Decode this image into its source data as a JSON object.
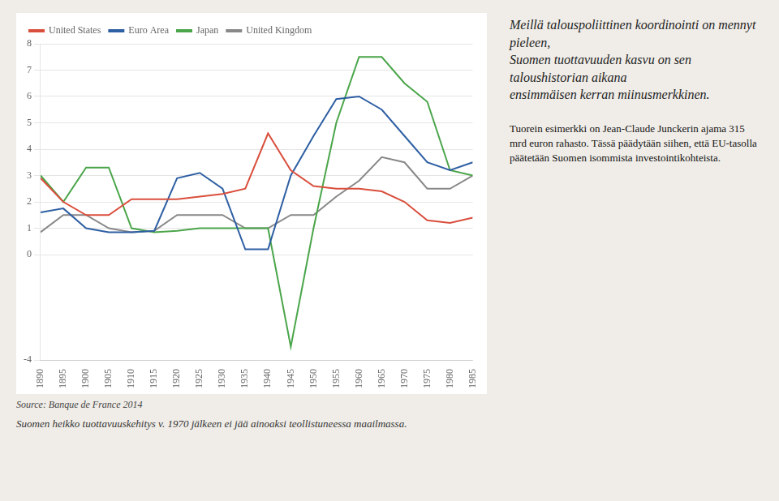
{
  "chart_data": {
    "type": "line",
    "annotations": [
      "Source: Banque de France 2014",
      "Suomen heikko tuottavuuskehitys v. 1970 jälkeen ei jää ainoaksi teollistuneessa maailmassa.",
      "Meillä talouspoliittinen koordinointi on mennyt pieleen,\nSuomen tuottavuuden kasvu on sen taloushistorian aikana\nensimmäisen kerran miinusmerkkinen.",
      "Tuorein esimerkki on Jean-Claude Junckerin ajama 315 mrd euron rahasto. Tässä päädytään siihen, että EU-tasolla päätetään Suomen isommista investointikohteista."
    ],
    "x": [
      1890,
      1895,
      1900,
      1905,
      1910,
      1915,
      1920,
      1925,
      1930,
      1935,
      1940,
      1945,
      1950,
      1955,
      1960,
      1965,
      1970,
      1975,
      1980,
      1985
    ],
    "series": [
      {
        "name": "United States",
        "color": "#d94f3d",
        "values": [
          2.9,
          2.0,
          1.5,
          1.5,
          2.1,
          2.1,
          2.1,
          2.2,
          2.3,
          2.5,
          4.6,
          3.2,
          2.6,
          2.5,
          2.5,
          2.4,
          2.0,
          1.3,
          1.2,
          1.4
        ]
      },
      {
        "name": "Euro Area",
        "color": "#2e5fa3",
        "values": [
          1.6,
          1.75,
          1.0,
          0.85,
          0.85,
          0.9,
          2.9,
          3.1,
          2.5,
          0.2,
          0.2,
          3.0,
          4.5,
          5.9,
          6.0,
          5.5,
          4.5,
          3.5,
          3.2,
          3.5
        ]
      },
      {
        "name": "Japan",
        "color": "#4aa54a",
        "values": [
          3.0,
          2.0,
          3.3,
          3.3,
          1.0,
          0.85,
          0.9,
          1.0,
          1.0,
          1.0,
          1.0,
          -3.5,
          1.0,
          5.0,
          7.5,
          7.5,
          6.5,
          5.8,
          3.2,
          3.0
        ]
      },
      {
        "name": "United Kingdom",
        "color": "#888888",
        "values": [
          0.85,
          1.5,
          1.5,
          1.0,
          0.85,
          0.9,
          1.5,
          1.5,
          1.5,
          1.0,
          1.0,
          1.5,
          1.5,
          2.2,
          2.8,
          3.7,
          3.5,
          2.5,
          2.5,
          3.0
        ]
      }
    ],
    "xlim": [
      1890,
      1985
    ],
    "xticks": [
      1890,
      1895,
      1900,
      1905,
      1910,
      1915,
      1920,
      1925,
      1930,
      1935,
      1940,
      1945,
      1950,
      1955,
      1960,
      1965,
      1970,
      1975,
      1980,
      1985
    ],
    "ylim": [
      -4,
      8
    ],
    "yticks": [
      -4,
      0,
      1,
      2,
      3,
      4,
      5,
      6,
      7,
      8
    ],
    "grid": "y",
    "legend": "upper left"
  }
}
